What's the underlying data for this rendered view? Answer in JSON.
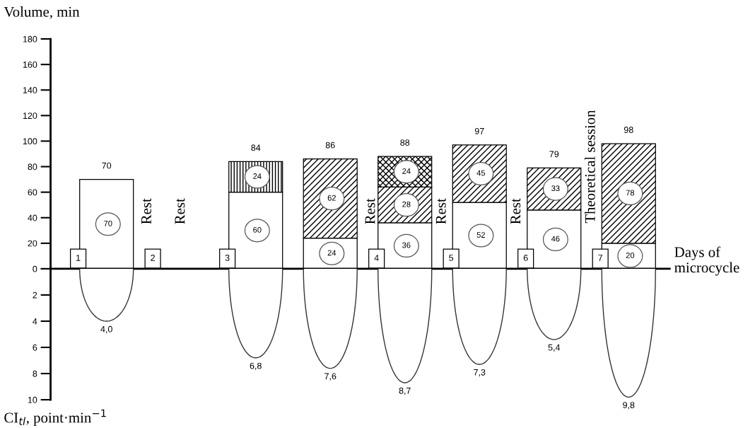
{
  "chart_data": [
    {
      "type": "bar",
      "stacked": true,
      "ylabel": "Volume, min",
      "xlabel": "Days of microcycle",
      "categories": [
        "1",
        "2",
        "3",
        null,
        "4",
        "5",
        "6",
        "7"
      ],
      "series": [
        {
          "color": "#ffffff",
          "values": [
            70,
            null,
            60,
            24,
            36,
            52,
            46,
            20
          ]
        },
        {
          "color": "#000000",
          "values": [
            null,
            null,
            24,
            null,
            null,
            null,
            null,
            null
          ]
        },
        {
          "color": "#000000",
          "values": [
            null,
            null,
            null,
            62,
            28,
            45,
            33,
            78
          ]
        },
        {
          "color": "#000000",
          "values": [
            null,
            null,
            null,
            null,
            24,
            null,
            null,
            null
          ]
        }
      ],
      "data_labels": true,
      "totals": [
        "70",
        null,
        "84",
        "86",
        "88",
        "97",
        "79",
        "98"
      ],
      "ylim": [
        0,
        180
      ],
      "yticks": [
        0,
        20,
        40,
        60,
        80,
        100,
        120,
        140,
        160,
        180
      ],
      "annotations": [
        "Rest",
        "Rest",
        "Rest",
        "Rest",
        "Rest",
        "Theoretical session"
      ]
    },
    {
      "type": "bar",
      "ylabel": "CI$_{tl}$, point·min$^{−1}$",
      "categories": [
        "1",
        "2",
        "3",
        null,
        "4",
        "5",
        "6",
        "7"
      ],
      "values": [
        4.0,
        null,
        6.8,
        7.6,
        8.7,
        7.3,
        5.4,
        9.8
      ],
      "value_labels": [
        "4,0",
        null,
        "6,8",
        "7,6",
        "8,7",
        "7,3",
        "5,4",
        "9,8"
      ],
      "ylim": [
        10,
        0
      ],
      "yticks": [
        {
          "value": 0,
          "label": null
        },
        2,
        4,
        6,
        8,
        10
      ],
      "tick_labels": "y"
    }
  ]
}
